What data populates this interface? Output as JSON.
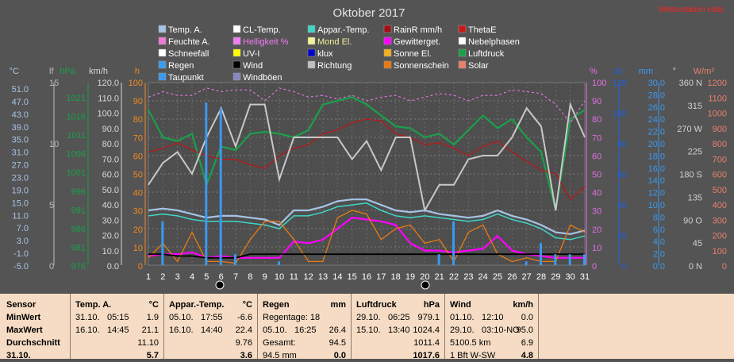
{
  "title": "Oktober 2017",
  "link": "Wetterstation Hatz",
  "legend": [
    {
      "label": "Temp. A.",
      "color": "#a7c3e6"
    },
    {
      "label": "CL-Temp.",
      "color": "#ffffff"
    },
    {
      "label": "Appar.-Temp.",
      "color": "#3fd6c6"
    },
    {
      "label": "RainR mm/h",
      "color": "#a01018"
    },
    {
      "label": "ThetaE",
      "color": "#c81a1a"
    },
    {
      "label": "Feuchte A.",
      "color": "#f07ad6"
    },
    {
      "label": "Helligkeit %",
      "color": "#f27cf2"
    },
    {
      "label": "Mond El.",
      "color": "#f4f29a"
    },
    {
      "label": "Gewitterget.",
      "color": "#ff00ff"
    },
    {
      "label": "Nebelphasen",
      "color": "#ffffff"
    },
    {
      "label": "Schneefall",
      "color": "#ffffff"
    },
    {
      "label": "UV-I",
      "color": "#ffff00"
    },
    {
      "label": "klux",
      "color": "#0000cc"
    },
    {
      "label": "Sonne El.",
      "color": "#f0b020"
    },
    {
      "label": "Luftdruck",
      "color": "#1aa04a"
    },
    {
      "label": "Regen",
      "color": "#3a9af0"
    },
    {
      "label": "Wind",
      "color": "#000000"
    },
    {
      "label": "Richtung",
      "color": "#c0c0c0"
    },
    {
      "label": "Sonnenschein",
      "color": "#e87a10"
    },
    {
      "label": "Solar",
      "color": "#e8806a"
    },
    {
      "label": "Taupunkt",
      "color": "#3a9af0"
    },
    {
      "label": "Windböen",
      "color": "#8888c0"
    }
  ],
  "axes": {
    "celsius": {
      "unit": "°C",
      "ticks": [
        "51.0",
        "47.0",
        "43.0",
        "39.0",
        "35.0",
        "31.0",
        "27.0",
        "23.0",
        "19.0",
        "15.0",
        "11.0",
        "7.0",
        "3.0",
        "-1.0",
        "-5.0"
      ]
    },
    "lf": {
      "unit": "lf",
      "ticks": [
        "15",
        "10",
        "5",
        "0"
      ]
    },
    "hpa": {
      "unit": "hPa",
      "ticks": [
        "1021",
        "1016",
        "1011",
        "1006",
        "1001",
        "996",
        "991",
        "986",
        "981",
        "976"
      ]
    },
    "kmh": {
      "unit": "km/h",
      "ticks": [
        "120.0",
        "110.0",
        "100.0",
        "90.0",
        "80.0",
        "70.0",
        "60.0",
        "50.0",
        "40.0",
        "30.0",
        "20.0",
        "10.0",
        "0.0"
      ]
    },
    "h": {
      "unit": "h",
      "ticks": [
        "100",
        "90",
        "80",
        "70",
        "60",
        "50",
        "40",
        "30",
        "20",
        "10",
        "0"
      ]
    },
    "pct": {
      "unit": "%",
      "ticks": [
        "100",
        "90",
        "80",
        "70",
        "60",
        "50",
        "40",
        "30",
        "20",
        "10",
        "0"
      ]
    },
    "cb": {
      "unit": "cb",
      "ticks": [
        "120",
        "100",
        "80",
        "60",
        "40",
        "20",
        "0"
      ]
    },
    "mm": {
      "unit": "mm",
      "ticks": [
        "30.0",
        "28.0",
        "26.0",
        "24.0",
        "22.0",
        "20.0",
        "18.0",
        "16.0",
        "14.0",
        "12.0",
        "10.0",
        "8.0",
        "6.0",
        "4.0",
        "2.0",
        "0.0"
      ]
    },
    "deg": {
      "unit": "°",
      "ticks": [
        "360 N",
        "315",
        "270 W",
        "225",
        "180 S",
        "135",
        "90 O",
        "45",
        "0  N"
      ]
    },
    "wm2": {
      "unit": "W/m²",
      "ticks": [
        "1200",
        "1100",
        "1000",
        "900",
        "800",
        "700",
        "600",
        "500",
        "400",
        "300",
        "200",
        "100",
        "0"
      ]
    }
  },
  "days": [
    "1",
    "2",
    "3",
    "4",
    "5",
    "6",
    "7",
    "8",
    "9",
    "10",
    "11",
    "12",
    "13",
    "14",
    "15",
    "16",
    "17",
    "18",
    "19",
    "20",
    "21",
    "22",
    "23",
    "24",
    "25",
    "26",
    "27",
    "28",
    "29",
    "30",
    "31"
  ],
  "chart_data": {
    "type": "line",
    "title": "Oktober 2017",
    "x": [
      1,
      2,
      3,
      4,
      5,
      6,
      7,
      8,
      9,
      10,
      11,
      12,
      13,
      14,
      15,
      16,
      17,
      18,
      19,
      20,
      21,
      22,
      23,
      24,
      25,
      26,
      27,
      28,
      29,
      30,
      31
    ],
    "ylim": [
      0,
      100
    ],
    "series": [
      {
        "name": "Luftdruck",
        "values": [
          85,
          70,
          68,
          72,
          44,
          65,
          63,
          72,
          73,
          72,
          70,
          74,
          88,
          90,
          92,
          88,
          82,
          76,
          75,
          70,
          72,
          66,
          74,
          82,
          75,
          80,
          70,
          62,
          30,
          80,
          85
        ]
      },
      {
        "name": "ThetaE",
        "values": [
          62,
          64,
          67,
          63,
          60,
          58,
          58,
          55,
          53,
          60,
          64,
          66,
          72,
          74,
          78,
          80,
          79,
          72,
          70,
          66,
          67,
          64,
          60,
          65,
          68,
          62,
          57,
          52,
          50,
          36,
          43
        ]
      },
      {
        "name": "Richtung",
        "values": [
          44,
          56,
          62,
          50,
          70,
          86,
          65,
          88,
          88,
          47,
          70,
          70,
          70,
          70,
          58,
          68,
          52,
          70,
          70,
          30,
          44,
          44,
          58,
          60,
          60,
          70,
          86,
          76,
          30,
          88,
          70
        ]
      },
      {
        "name": "Temp. A.",
        "values": [
          30,
          31,
          30,
          28,
          26,
          27,
          27,
          26,
          25,
          22,
          30,
          30,
          32,
          35,
          36,
          36,
          33,
          30,
          29,
          30,
          28,
          27,
          26,
          27,
          30,
          27,
          25,
          22,
          18,
          17,
          19
        ]
      },
      {
        "name": "Appar.-Temp.",
        "values": [
          27,
          28,
          27,
          25,
          24,
          24,
          24,
          23,
          22,
          20,
          27,
          27,
          29,
          32,
          33,
          34,
          30,
          27,
          26,
          27,
          26,
          25,
          24,
          25,
          28,
          25,
          23,
          20,
          15,
          14,
          16
        ]
      },
      {
        "name": "Helligkeit %",
        "values": [
          92,
          95,
          93,
          93,
          97,
          95,
          96,
          96,
          90,
          97,
          95,
          92,
          93,
          91,
          93,
          90,
          92,
          93,
          90,
          92,
          94,
          93,
          90,
          93,
          93,
          96,
          95,
          94,
          88,
          78,
          90
        ]
      },
      {
        "name": "Gewitterget.",
        "values": [
          5,
          6,
          6,
          7,
          4,
          5,
          4,
          4,
          4,
          4,
          13,
          12,
          14,
          20,
          26,
          25,
          24,
          22,
          12,
          8,
          8,
          7,
          8,
          9,
          16,
          8,
          6,
          5,
          4,
          4,
          4
        ]
      },
      {
        "name": "Sonnenschein",
        "values": [
          4,
          12,
          2,
          18,
          2,
          2,
          1,
          14,
          24,
          24,
          14,
          2,
          2,
          26,
          30,
          28,
          14,
          20,
          22,
          12,
          14,
          2,
          18,
          22,
          6,
          2,
          4,
          2,
          2,
          22,
          18
        ]
      },
      {
        "name": "Wind",
        "values": [
          6,
          6,
          5,
          5,
          4,
          4,
          4,
          6,
          6,
          6,
          6,
          6,
          6,
          6,
          6,
          6,
          6,
          6,
          6,
          6,
          6,
          6,
          6,
          6,
          6,
          6,
          6,
          6,
          6,
          6,
          6
        ]
      },
      {
        "name": "Regen",
        "values": [
          0,
          24,
          0,
          0,
          89,
          86,
          6,
          0,
          0,
          2,
          0,
          0,
          0,
          0,
          0,
          0,
          0,
          0,
          0,
          0,
          6,
          24,
          0,
          0,
          0,
          0,
          2,
          12,
          6,
          6,
          6
        ]
      }
    ]
  },
  "stats": {
    "row_labels": [
      "Sensor",
      "MinWert",
      "MaxWert",
      "Durchschnitt",
      "31.10."
    ],
    "columns": [
      {
        "header": "Temp. A.",
        "unit": "°C",
        "min": [
          "31.10.",
          "05:15",
          "1.9"
        ],
        "max": [
          "16.10.",
          "14:45",
          "21.1"
        ],
        "avg": "11.10",
        "cur": "5.7"
      },
      {
        "header": "Appar.-Temp.",
        "unit": "°C",
        "min": [
          "05.10.",
          "17:55",
          "-6.6"
        ],
        "max": [
          "16.10.",
          "14:40",
          "22.4"
        ],
        "avg": "9.76",
        "cur": "3.6"
      },
      {
        "header": "Regen",
        "unit": "mm",
        "min": [
          "Regentage: 18",
          "",
          ""
        ],
        "max": [
          "05.10.",
          "16:25",
          "26.4"
        ],
        "avg_label": "Gesamt:",
        "avg": "94.5",
        "cur_label": "94.5 mm",
        "cur": "0.0"
      },
      {
        "header": "Luftdruck",
        "unit": "hPa",
        "min": [
          "29.10.",
          "06:25",
          "979.1"
        ],
        "max": [
          "15.10.",
          "13:40",
          "1024.4"
        ],
        "avg": "1011.4",
        "cur": "1017.6"
      },
      {
        "header": "Wind",
        "unit": "km/h",
        "min": [
          "01.10.",
          "12:10",
          "0.0"
        ],
        "max": [
          "29.10.",
          "03:10-NO",
          "95.0"
        ],
        "avg_label": "5100.5 km",
        "avg": "6.9",
        "cur_label": "1 Bft W-SW",
        "cur": "4.8"
      }
    ]
  }
}
